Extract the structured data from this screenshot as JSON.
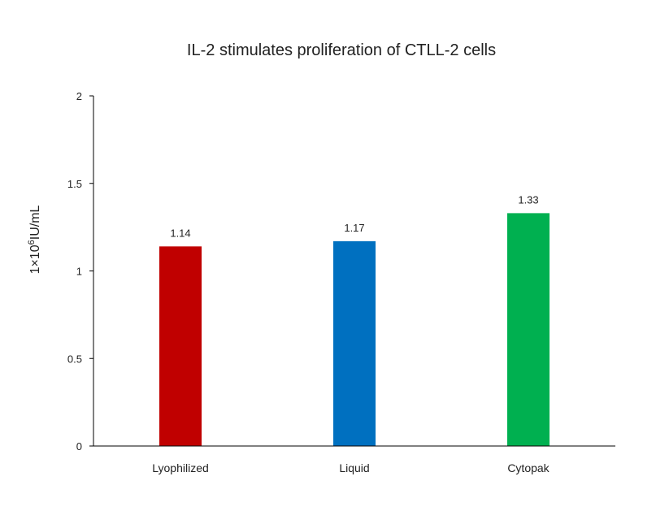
{
  "chart_data": {
    "type": "bar",
    "title": "IL-2 stimulates proliferation of CTLL-2 cells",
    "ylabel_prefix": "1×10",
    "ylabel_sup": "6",
    "ylabel_suffix": "IU/mL",
    "xlabel": "",
    "categories": [
      "Lyophilized",
      "Liquid",
      "Cytopak"
    ],
    "values": [
      1.14,
      1.17,
      1.33
    ],
    "data_labels": [
      "1.14",
      "1.17",
      "1.33"
    ],
    "colors": [
      "#C00000",
      "#0070C0",
      "#00B050"
    ],
    "ylim": [
      0,
      2
    ],
    "yticks": [
      0,
      0.5,
      1,
      1.5,
      2
    ],
    "ytick_labels": [
      "0",
      "0.5",
      "1",
      "1.5",
      "2"
    ],
    "grid": false,
    "legend": "none"
  }
}
